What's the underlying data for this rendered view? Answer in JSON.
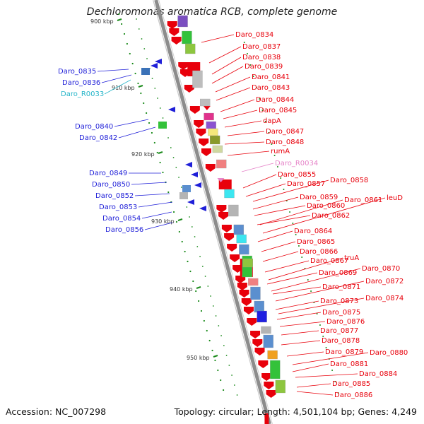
{
  "title": "Dechloromonas aromatica RCB, complete genome",
  "footer": {
    "accession": "Accession: NC_007298",
    "summary": "Topology: circular; Length: 4,501,104 bp; Genes: 4,249"
  },
  "scale_labels": [
    "900 kbp",
    "910 kbp",
    "920 kbp",
    "930 kbp",
    "940 kbp",
    "950 kbp"
  ],
  "colors": {
    "forward_genes": "#e8000b",
    "reverse_genes": "#1f1fd8",
    "rna_label": "#e685c9",
    "trna_label": "#27b6c9",
    "backbone": "#8c8c8c"
  },
  "labels_left": [
    "Daro_0835",
    "Daro_0836",
    "Daro_R0033",
    "Daro_0840",
    "Daro_0842",
    "Daro_0849",
    "Daro_0850",
    "Daro_0852",
    "Daro_0853",
    "Daro_0854",
    "Daro_0856"
  ],
  "labels_right": [
    "Daro_0834",
    "Daro_0837",
    "Daro_0838",
    "Daro_0839",
    "Daro_0841",
    "Daro_0843",
    "Daro_0844",
    "Daro_0845",
    "dapA",
    "Daro_0847",
    "Daro_0848",
    "rumA",
    "Daro_R0034",
    "Daro_0855",
    "Daro_0857",
    "Daro_0858",
    "Daro_0859",
    "Daro_0860",
    "Daro_0861",
    "leuD",
    "Daro_0862",
    "Daro_0864",
    "Daro_0865",
    "Daro_0866",
    "Daro_0867",
    "truA",
    "Daro_0869",
    "Daro_0870",
    "Daro_0871",
    "Daro_0872",
    "Daro_0873",
    "Daro_0874",
    "Daro_0875",
    "Daro_0876",
    "Daro_0877",
    "Daro_0878",
    "Daro_0879",
    "Daro_0880",
    "Daro_0881",
    "Daro_0884",
    "Daro_0885",
    "Daro_0886"
  ]
}
